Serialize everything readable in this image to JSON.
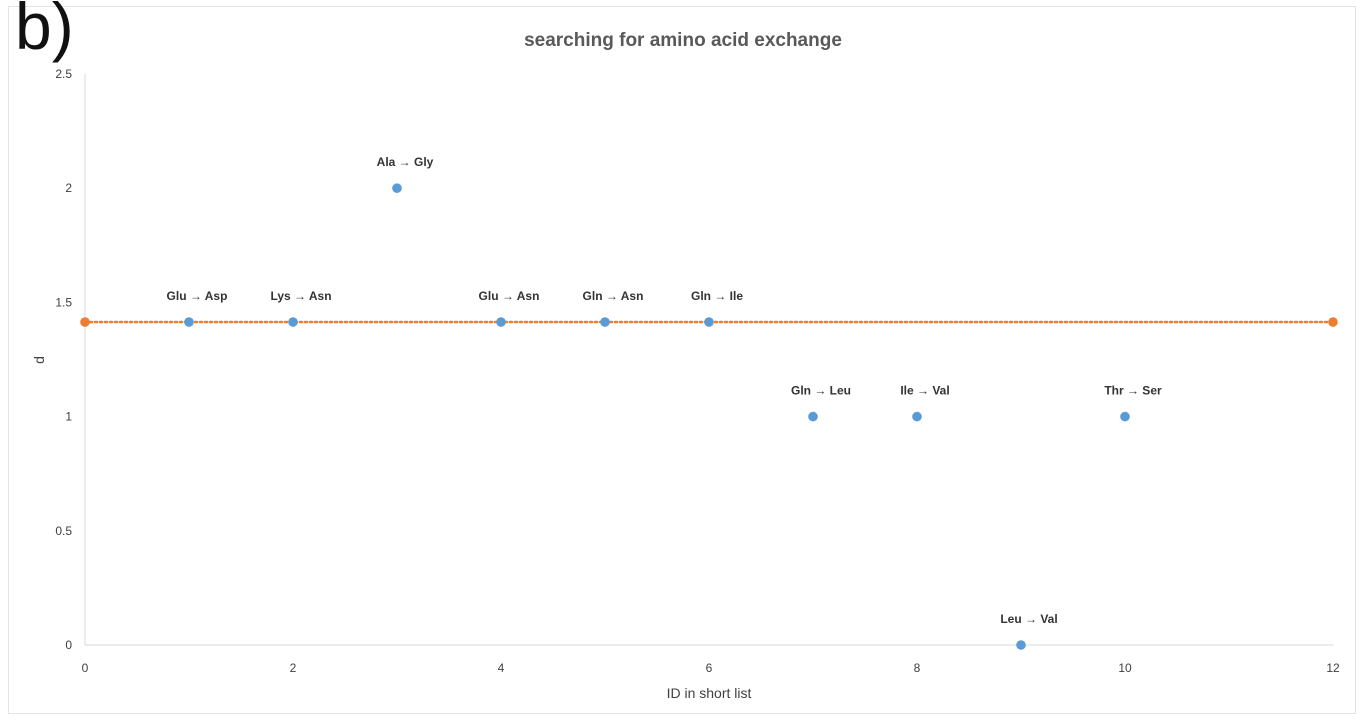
{
  "panel_label": "b)",
  "chart_data": {
    "type": "scatter",
    "title": "searching for amino acid exchange",
    "xlabel": "ID  in short list",
    "ylabel": "d",
    "xlim": [
      0,
      12
    ],
    "ylim": [
      0,
      2.5
    ],
    "x_ticks": [
      "0",
      "2",
      "4",
      "6",
      "8",
      "10",
      "12"
    ],
    "y_ticks": [
      "0",
      "0.5",
      "1",
      "1.5",
      "2",
      "2.5"
    ],
    "grid": false,
    "legend": "none",
    "series": [
      {
        "color": "#5b9bd5",
        "points": [
          {
            "x": 1,
            "y": 1.414,
            "label": "Glu → Asp"
          },
          {
            "x": 2,
            "y": 1.414,
            "label": "Lys → Asn"
          },
          {
            "x": 3,
            "y": 2,
            "label": "Ala → Gly"
          },
          {
            "x": 4,
            "y": 1.414,
            "label": "Glu → Asn"
          },
          {
            "x": 5,
            "y": 1.414,
            "label": "Gln → Asn"
          },
          {
            "x": 6,
            "y": 1.414,
            "label": "Gln → Ile"
          },
          {
            "x": 7,
            "y": 1,
            "label": "Gln → Leu"
          },
          {
            "x": 8,
            "y": 1,
            "label": "Ile → Val"
          },
          {
            "x": 9,
            "y": 0,
            "label": "Leu → Val"
          },
          {
            "x": 10,
            "y": 1,
            "label": "Thr → Ser"
          }
        ]
      },
      {
        "color": "#ed7d31",
        "line_style": "dotted",
        "points": [
          {
            "x": 0,
            "y": 1.414
          },
          {
            "x": 12,
            "y": 1.414
          }
        ]
      }
    ]
  }
}
